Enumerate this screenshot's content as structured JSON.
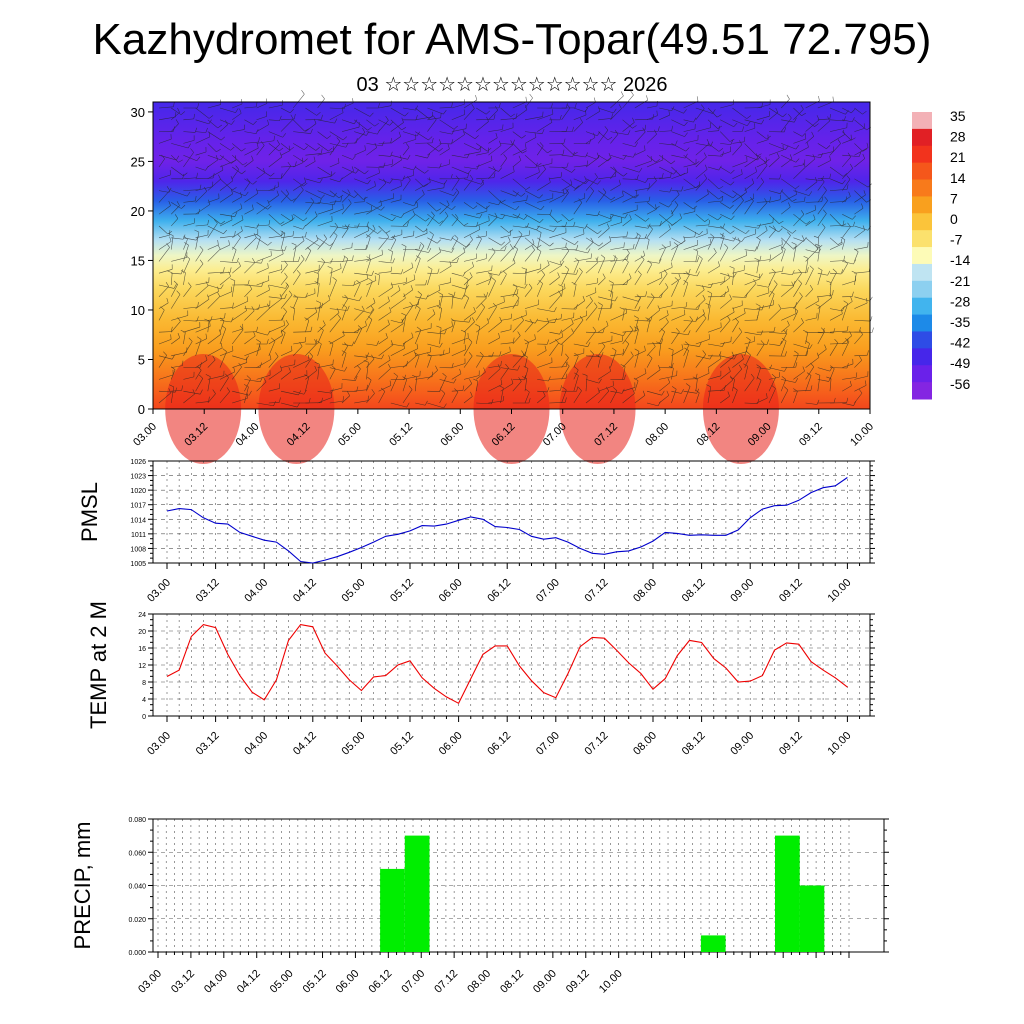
{
  "title": "Kazhydromet for AMS-Topar(49.51 72.795)",
  "subtitle": "03 ☆☆☆☆☆☆☆☆☆☆☆☆☆ 2026",
  "time_labels": [
    "03.00",
    "03.12",
    "04.00",
    "04.12",
    "05.00",
    "05.12",
    "06.00",
    "06.12",
    "07.00",
    "07.12",
    "08.00",
    "08.12",
    "09.00",
    "09.12",
    "10.00"
  ],
  "chart_data": [
    {
      "type": "heatmap",
      "name": "vertical-cross-section",
      "xlabel": "",
      "ylabel": "",
      "ylim": [
        0,
        31
      ],
      "yticks": [
        "0",
        "5",
        "10",
        "15",
        "20",
        "25",
        "30"
      ],
      "legend": {
        "title": "",
        "labels": [
          "35",
          "28",
          "21",
          "14",
          "7",
          "0",
          "-7",
          "-14",
          "-21",
          "-28",
          "-35",
          "-42",
          "-49",
          "-56"
        ],
        "colors": [
          "#f3b1b6",
          "#e12025",
          "#f2331d",
          "#f5571b",
          "#f87a1b",
          "#f9a01e",
          "#fbc43a",
          "#fbe16d",
          "#fdfbb7",
          "#bfe4f2",
          "#8dd0f0",
          "#41b4ee",
          "#1d8ae8",
          "#2e4ce6",
          "#4626ea",
          "#6a21ea",
          "#8425e2"
        ]
      },
      "profile_levels_km": [
        0,
        3,
        6,
        9,
        12,
        14,
        15.5,
        17,
        19,
        21,
        23,
        25,
        27,
        31
      ],
      "profile_temps_c": [
        22,
        14,
        7,
        2,
        -4,
        -9,
        -14,
        -20,
        -32,
        -42,
        -52,
        -58,
        -56,
        -50
      ],
      "note": "wind barbs overlay"
    },
    {
      "type": "line",
      "name": "pmsl",
      "ylabel": "PMSL",
      "ylim": [
        1005,
        1026
      ],
      "yticks": [
        "1005",
        "1008",
        "1011",
        "1014",
        "1017",
        "1020",
        "1023",
        "1026"
      ],
      "color": "#0000cc",
      "values": [
        1015.7,
        1016.2,
        1016.0,
        1014.3,
        1013.2,
        1013.0,
        1011.3,
        1010.5,
        1009.7,
        1009.3,
        1007.5,
        1005.3,
        1005.0,
        1005.6,
        1006.3,
        1007.2,
        1008.2,
        1009.3,
        1010.5,
        1010.9,
        1011.6,
        1012.7,
        1012.6,
        1013.0,
        1013.8,
        1014.5,
        1014.0,
        1012.5,
        1012.3,
        1011.9,
        1010.5,
        1009.9,
        1010.2,
        1009.3,
        1008.0,
        1007.0,
        1006.8,
        1007.3,
        1007.5,
        1008.3,
        1009.5,
        1011.3,
        1011.1,
        1010.7,
        1010.8,
        1010.7,
        1010.7,
        1011.8,
        1014.3,
        1016.1,
        1016.8,
        1016.9,
        1017.9,
        1019.5,
        1020.5,
        1020.9,
        1022.6
      ]
    },
    {
      "type": "line",
      "name": "temp2m",
      "ylabel": "TEMP at 2 M",
      "ylim": [
        0,
        24
      ],
      "yticks": [
        "0",
        "4",
        "8",
        "12",
        "16",
        "20",
        "24"
      ],
      "color": "#ee0000",
      "values": [
        9.3,
        10.8,
        18.7,
        21.5,
        20.8,
        14.5,
        9.5,
        5.6,
        3.8,
        8.5,
        17.8,
        21.5,
        21.0,
        14.8,
        11.8,
        8.5,
        6.0,
        9.2,
        9.5,
        12.0,
        13.0,
        9.0,
        6.5,
        4.5,
        3.0,
        8.8,
        14.5,
        16.5,
        16.5,
        11.8,
        8.3,
        5.5,
        4.3,
        10.0,
        16.3,
        18.5,
        18.3,
        15.5,
        12.5,
        10.0,
        6.3,
        8.8,
        14.2,
        17.8,
        17.3,
        13.5,
        11.3,
        8.0,
        8.2,
        9.5,
        15.5,
        17.2,
        16.9,
        12.8,
        10.8,
        9.0,
        6.8
      ]
    },
    {
      "type": "bar",
      "name": "precip",
      "ylabel": "PRECIP, mm",
      "ylim": [
        0,
        0.08
      ],
      "yticks": [
        "0.000",
        "0.020",
        "0.040",
        "0.060",
        "0.080"
      ],
      "color": "#00ee00",
      "bars": [
        {
          "t": 27,
          "value": 0.05
        },
        {
          "t": 30,
          "value": 0.07
        },
        {
          "t": 66,
          "value": 0.01
        },
        {
          "t": 75,
          "value": 0.07
        },
        {
          "t": 78,
          "value": 0.04
        }
      ]
    }
  ]
}
